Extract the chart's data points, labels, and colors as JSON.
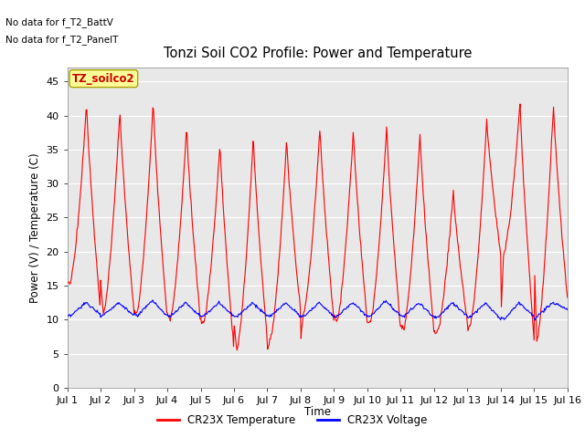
{
  "title": "Tonzi Soil CO2 Profile: Power and Temperature",
  "ylabel": "Power (V) / Temperature (C)",
  "xlabel": "Time",
  "ylim": [
    0,
    47
  ],
  "yticks": [
    0,
    5,
    10,
    15,
    20,
    25,
    30,
    35,
    40,
    45
  ],
  "x_labels": [
    "Jul 1",
    "Jul 2",
    "Jul 3",
    "Jul 4",
    "Jul 5",
    "Jul 6",
    "Jul 7",
    "Jul 8",
    "Jul 9",
    "Jul 10",
    "Jul 11",
    "Jul 12",
    "Jul 13",
    "Jul 14",
    "Jul 15",
    "Jul 16"
  ],
  "no_data_text1": "No data for f_T2_BattV",
  "no_data_text2": "No data for f_T2_PanelT",
  "legend_label1": "TZ_soilco2",
  "legend_label2": "CR23X Temperature",
  "legend_label3": "CR23X Voltage",
  "bg_color": "#e8e8e8",
  "temp_color": "#ff0000",
  "volt_color": "#0000ff",
  "temp_peaks": [
    42,
    41,
    42,
    38.5,
    36,
    37,
    36.5,
    38.5,
    38,
    38.5,
    37.5,
    29,
    39.5,
    42,
    42,
    44.5
  ],
  "temp_troughs": [
    15.5,
    11,
    11,
    10,
    9.5,
    5.5,
    7,
    11,
    9.5,
    9.5,
    8.5,
    8.0,
    9.5,
    19.5,
    7,
    13,
    19
  ],
  "volt_peaks": [
    12.5,
    12.5,
    12.8,
    12.5,
    12.5,
    12.5,
    12.5,
    12.5,
    12.5,
    12.8,
    12.5,
    12.5,
    12.5,
    12.5,
    12.5,
    12.5
  ],
  "volt_troughs": [
    10.5,
    10.8,
    10.5,
    10.5,
    10.5,
    10.5,
    10.5,
    10.5,
    10.5,
    10.5,
    10.5,
    10.3,
    10.5,
    10.0,
    10.5,
    11.5
  ]
}
